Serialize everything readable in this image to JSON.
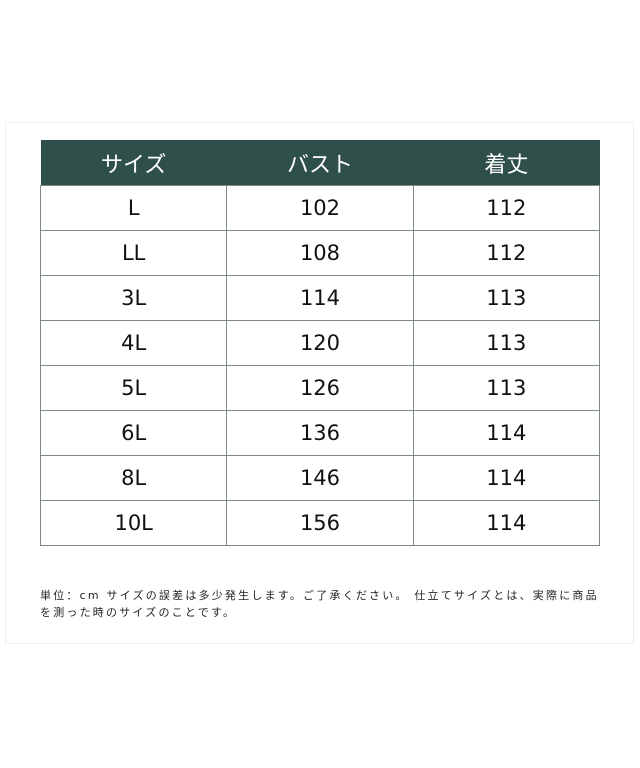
{
  "header_color": "#2f4f4a",
  "columns": [
    "サイズ",
    "バスト",
    "着丈"
  ],
  "rows": [
    [
      "L",
      "102",
      "112"
    ],
    [
      "LL",
      "108",
      "112"
    ],
    [
      "3L",
      "114",
      "113"
    ],
    [
      "4L",
      "120",
      "113"
    ],
    [
      "5L",
      "126",
      "113"
    ],
    [
      "6L",
      "136",
      "114"
    ],
    [
      "8L",
      "146",
      "114"
    ],
    [
      "10L",
      "156",
      "114"
    ]
  ],
  "note": "単位：cm サイズの誤差は多少発生します。ご了承ください。 仕立てサイズとは、実際に商品を測った時のサイズのことです。"
}
